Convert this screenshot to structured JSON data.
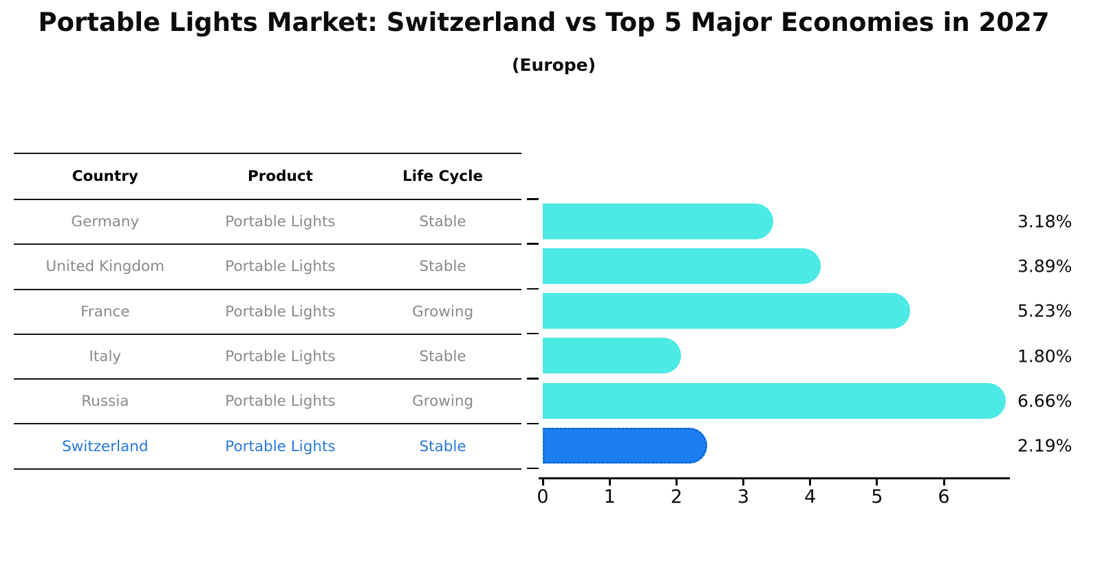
{
  "chart_data": {
    "type": "bar",
    "orientation": "horizontal",
    "title": "Portable Lights Market: Switzerland vs Top 5 Major Economies in 2027",
    "subtitle": "(Europe)",
    "categories": [
      "Germany",
      "United Kingdom",
      "France",
      "Italy",
      "Russia",
      "Switzerland"
    ],
    "values": [
      3.18,
      3.89,
      5.23,
      1.8,
      6.66,
      2.19
    ],
    "value_labels": [
      "3.18%",
      "3.89%",
      "5.23%",
      "1.80%",
      "6.66%",
      "2.19%"
    ],
    "highlight_index": 5,
    "x_tick_labels": [
      "0",
      "1",
      "2",
      "3",
      "4",
      "5",
      "6"
    ],
    "xlim": [
      0,
      7
    ],
    "grid": false,
    "legend": "none",
    "colors": {
      "bar": "#4de9e4",
      "highlight_bar": "#1b7ef0",
      "highlight_border": "#1566d9",
      "axis": "#0a0a0a",
      "value_label": "#0b0b0b",
      "table_text": "#8a8a8a",
      "table_header_text": "#000000",
      "highlight_text": "#2878d8"
    }
  },
  "table": {
    "headers": [
      "Country",
      "Product",
      "Life Cycle"
    ],
    "rows": [
      {
        "country": "Germany",
        "product": "Portable Lights",
        "life_cycle": "Stable"
      },
      {
        "country": "United Kingdom",
        "product": "Portable Lights",
        "life_cycle": "Stable"
      },
      {
        "country": "France",
        "product": "Portable Lights",
        "life_cycle": "Growing"
      },
      {
        "country": "Italy",
        "product": "Portable Lights",
        "life_cycle": "Stable"
      },
      {
        "country": "Russia",
        "product": "Portable Lights",
        "life_cycle": "Growing"
      },
      {
        "country": "Switzerland",
        "product": "Portable Lights",
        "life_cycle": "Stable"
      }
    ]
  }
}
